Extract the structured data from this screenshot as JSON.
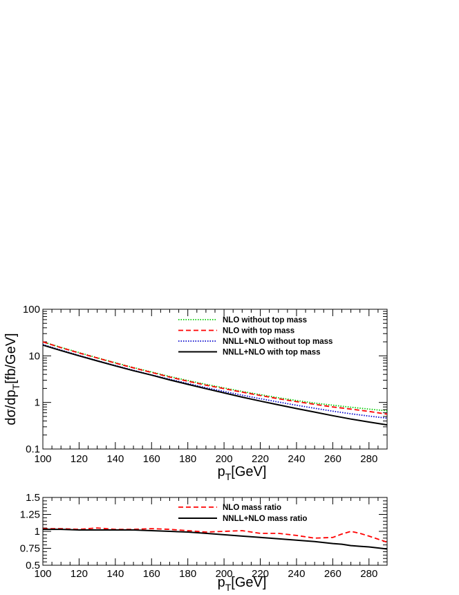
{
  "chart_data": [
    {
      "type": "line",
      "xlabel": "p_T[GeV]",
      "ylabel": "dσ/dp_T[fb/GeV]",
      "xlim": [
        100,
        290
      ],
      "ylim": [
        0.1,
        100
      ],
      "yscale": "log",
      "grid": false,
      "legend_position": "top-right",
      "x_ticks": [
        "100",
        "120",
        "140",
        "160",
        "180",
        "200",
        "220",
        "240",
        "260",
        "280"
      ],
      "y_ticks": [
        "0.1",
        "1",
        "10",
        "100"
      ],
      "x": [
        100,
        110,
        120,
        130,
        140,
        150,
        160,
        170,
        180,
        190,
        200,
        210,
        220,
        230,
        240,
        250,
        260,
        270,
        280,
        290
      ],
      "series": [
        {
          "name": "NLO  without top mass",
          "color": "#00cc00",
          "dash": "dotted",
          "values": [
            20.0,
            15.2,
            11.7,
            9.1,
            7.1,
            5.6,
            4.5,
            3.6,
            2.95,
            2.45,
            2.05,
            1.72,
            1.47,
            1.26,
            1.1,
            0.97,
            0.87,
            0.79,
            0.72,
            0.66
          ]
        },
        {
          "name": "NLO  with top mass",
          "color": "#ff0000",
          "dash": "dashed",
          "values": [
            20.0,
            15.0,
            11.5,
            9.0,
            7.0,
            5.5,
            4.4,
            3.5,
            2.85,
            2.35,
            1.98,
            1.66,
            1.41,
            1.2,
            1.04,
            0.91,
            0.8,
            0.72,
            0.64,
            0.56
          ]
        },
        {
          "name": "NNLL+NLO without top mass",
          "color": "#0000cc",
          "dash": "dotted",
          "values": [
            17.5,
            13.3,
            10.2,
            7.9,
            6.2,
            4.9,
            3.9,
            3.15,
            2.55,
            2.08,
            1.72,
            1.43,
            1.2,
            1.02,
            0.87,
            0.75,
            0.65,
            0.57,
            0.51,
            0.46
          ]
        },
        {
          "name": "NNLL+NLO with top  mass",
          "color": "#000000",
          "dash": "solid",
          "values": [
            17.0,
            13.0,
            10.0,
            7.8,
            6.1,
            4.8,
            3.85,
            3.05,
            2.45,
            1.97,
            1.6,
            1.3,
            1.07,
            0.89,
            0.74,
            0.62,
            0.52,
            0.44,
            0.38,
            0.33
          ]
        }
      ]
    },
    {
      "type": "line",
      "xlabel": "p_T[GeV]",
      "ylabel": "",
      "xlim": [
        100,
        290
      ],
      "ylim": [
        0.5,
        1.5
      ],
      "grid": false,
      "legend_position": "top-right",
      "x_ticks": [
        "100",
        "120",
        "140",
        "160",
        "180",
        "200",
        "220",
        "240",
        "260",
        "280"
      ],
      "y_ticks": [
        "0.5",
        "0.75",
        "1",
        "1.25",
        "1.5"
      ],
      "x": [
        100,
        110,
        120,
        130,
        140,
        150,
        160,
        170,
        180,
        190,
        200,
        210,
        220,
        230,
        240,
        250,
        260,
        265,
        270,
        275,
        280,
        290
      ],
      "series": [
        {
          "name": "NLO mass ratio",
          "color": "#ff0000",
          "dash": "dashed",
          "values": [
            1.04,
            1.04,
            1.03,
            1.05,
            1.03,
            1.03,
            1.04,
            1.03,
            1.01,
            0.99,
            1.0,
            1.01,
            0.97,
            0.97,
            0.94,
            0.9,
            0.91,
            0.96,
            1.0,
            0.97,
            0.93,
            0.84
          ]
        },
        {
          "name": "NNLL+NLO  mass ratio",
          "color": "#000000",
          "dash": "solid",
          "values": [
            1.03,
            1.03,
            1.02,
            1.02,
            1.02,
            1.02,
            1.01,
            1.0,
            0.99,
            0.97,
            0.95,
            0.93,
            0.91,
            0.89,
            0.87,
            0.85,
            0.82,
            0.81,
            0.79,
            0.78,
            0.77,
            0.74
          ]
        }
      ]
    }
  ]
}
